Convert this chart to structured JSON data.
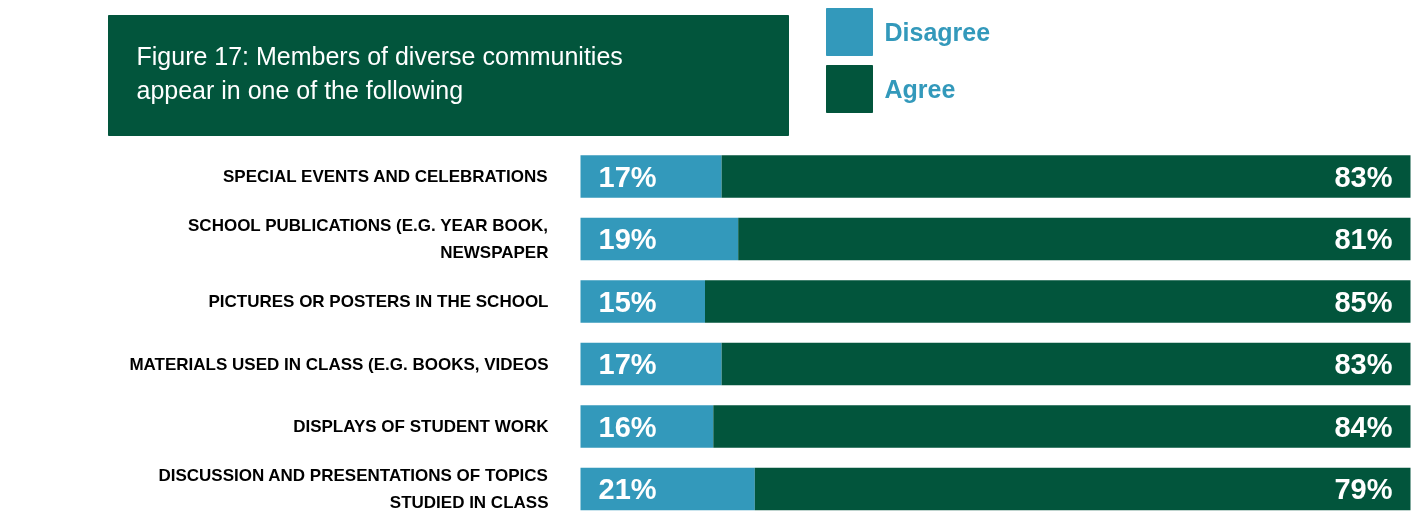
{
  "chart_data": {
    "type": "bar",
    "orientation": "horizontal",
    "stacked": true,
    "title": "Figure 17: Members of diverse communities appear in one of the following",
    "legend": "top",
    "categories": [
      "SPECIAL EVENTS AND CELEBRATIONS",
      "SCHOOL PUBLICATIONS (E.G. YEAR BOOK, NEWSPAPER",
      "PICTURES OR POSTERS IN THE SCHOOL",
      "MATERIALS USED IN CLASS (E.G. BOOKS, VIDEOS",
      "DISPLAYS OF STUDENT WORK",
      "DISCUSSION AND PRESENTATIONS OF TOPICS STUDIED IN CLASS"
    ],
    "series": [
      {
        "name": "Disagree",
        "color": "#3399bb",
        "values": [
          17,
          19,
          15,
          17,
          16,
          21
        ],
        "value_labels": [
          "17%",
          "19%",
          "15%",
          "17%",
          "16%",
          "21%"
        ]
      },
      {
        "name": "Agree",
        "color": "#02553c",
        "values": [
          83,
          81,
          85,
          83,
          84,
          79
        ],
        "value_labels": [
          "83%",
          "81%",
          "85%",
          "83%",
          "84%",
          "79%"
        ]
      }
    ]
  }
}
